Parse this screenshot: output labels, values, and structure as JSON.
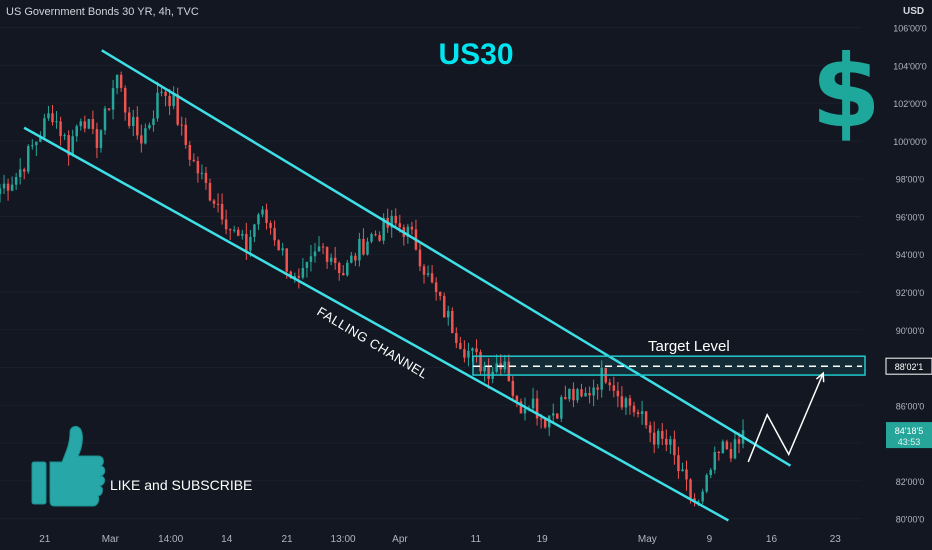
{
  "header": {
    "symbol_title": "US Government Bonds 30 YR, 4h, TVC",
    "currency": "USD"
  },
  "annotations": {
    "headline": "US30",
    "dollar_sign": "$",
    "channel_label": "FALLING CHANNEL",
    "target_label": "Target Level",
    "cta_text": "LIKE and SUBSCRIBE",
    "thumbs_icon": "thumbs-up-icon"
  },
  "colors": {
    "background": "#131722",
    "up_candle": "#26a69a",
    "down_candle": "#ef5350",
    "channel_line": "#3ee0e8",
    "headline": "#00e5f0",
    "dollar": "#1ea79b",
    "thumb": "#27a7a7",
    "target_box": "#22c7cf",
    "projection": "#ffffff"
  },
  "chart_data": {
    "type": "candlestick",
    "y_axis": {
      "position": "right",
      "min": 79.5,
      "max": 106.3,
      "ticks": [
        "80'00'0",
        "82'00'0",
        "84'00'0",
        "86'00'0",
        "88'00'0",
        "90'00'0",
        "92'00'0",
        "94'00'0",
        "96'00'0",
        "98'00'0",
        "100'00'0",
        "102'00'0",
        "104'00'0",
        "106'00'0"
      ],
      "tick_values": [
        80,
        82,
        84,
        86,
        88,
        90,
        92,
        94,
        96,
        98,
        100,
        102,
        104,
        106
      ]
    },
    "x_axis": {
      "ticks": [
        {
          "label": "21",
          "frac": 0.052
        },
        {
          "label": "Mar",
          "frac": 0.128
        },
        {
          "label": "14:00",
          "frac": 0.198
        },
        {
          "label": "14",
          "frac": 0.263
        },
        {
          "label": "21",
          "frac": 0.333
        },
        {
          "label": "13:00",
          "frac": 0.398
        },
        {
          "label": "Apr",
          "frac": 0.464
        },
        {
          "label": "11",
          "frac": 0.552
        },
        {
          "label": "19",
          "frac": 0.629
        },
        {
          "label": "May",
          "frac": 0.751
        },
        {
          "label": "9",
          "frac": 0.823
        },
        {
          "label": "16",
          "frac": 0.895
        },
        {
          "label": "23",
          "frac": 0.969
        }
      ]
    },
    "price_labels": [
      {
        "text": "88'02'1",
        "value": 88.07,
        "style": "target"
      },
      {
        "text": "84'18'5",
        "value": 84.58,
        "style": "current"
      },
      {
        "text": "43:53",
        "value": 84.58,
        "style": "countdown"
      }
    ],
    "target_level": 88.07,
    "target_zone": [
      87.6,
      88.6
    ],
    "channel_upper": {
      "start": {
        "frac": 0.118,
        "value": 104.8
      },
      "end": {
        "frac": 0.917,
        "value": 82.8
      }
    },
    "channel_lower": {
      "start": {
        "frac": 0.028,
        "value": 100.7
      },
      "end": {
        "frac": 0.845,
        "value": 79.9
      }
    },
    "projection_path": [
      {
        "frac": 0.868,
        "value": 83.0
      },
      {
        "frac": 0.89,
        "value": 85.5
      },
      {
        "frac": 0.915,
        "value": 83.4
      },
      {
        "frac": 0.955,
        "value": 87.7
      }
    ],
    "keypoints": [
      {
        "frac": 0.0,
        "value": 97.5
      },
      {
        "frac": 0.02,
        "value": 98.2
      },
      {
        "frac": 0.045,
        "value": 100.3
      },
      {
        "frac": 0.06,
        "value": 101.6
      },
      {
        "frac": 0.08,
        "value": 99.6
      },
      {
        "frac": 0.095,
        "value": 101.6
      },
      {
        "frac": 0.11,
        "value": 99.8
      },
      {
        "frac": 0.122,
        "value": 101.2
      },
      {
        "frac": 0.135,
        "value": 103.6
      },
      {
        "frac": 0.145,
        "value": 101.8
      },
      {
        "frac": 0.153,
        "value": 100.8
      },
      {
        "frac": 0.163,
        "value": 100.1
      },
      {
        "frac": 0.175,
        "value": 101.2
      },
      {
        "frac": 0.187,
        "value": 102.8
      },
      {
        "frac": 0.2,
        "value": 102.2
      },
      {
        "frac": 0.212,
        "value": 100.2
      },
      {
        "frac": 0.225,
        "value": 98.8
      },
      {
        "frac": 0.24,
        "value": 97.5
      },
      {
        "frac": 0.255,
        "value": 96.6
      },
      {
        "frac": 0.268,
        "value": 95.3
      },
      {
        "frac": 0.285,
        "value": 94.3
      },
      {
        "frac": 0.3,
        "value": 96.2
      },
      {
        "frac": 0.315,
        "value": 95.4
      },
      {
        "frac": 0.33,
        "value": 93.8
      },
      {
        "frac": 0.345,
        "value": 92.2
      },
      {
        "frac": 0.36,
        "value": 93.4
      },
      {
        "frac": 0.372,
        "value": 94.4
      },
      {
        "frac": 0.385,
        "value": 94.0
      },
      {
        "frac": 0.398,
        "value": 93.0
      },
      {
        "frac": 0.41,
        "value": 93.8
      },
      {
        "frac": 0.425,
        "value": 94.8
      },
      {
        "frac": 0.44,
        "value": 95.2
      },
      {
        "frac": 0.455,
        "value": 95.6
      },
      {
        "frac": 0.468,
        "value": 95.4
      },
      {
        "frac": 0.482,
        "value": 94.6
      },
      {
        "frac": 0.496,
        "value": 92.8
      },
      {
        "frac": 0.51,
        "value": 91.4
      },
      {
        "frac": 0.525,
        "value": 90.2
      },
      {
        "frac": 0.54,
        "value": 89.0
      },
      {
        "frac": 0.555,
        "value": 88.3
      },
      {
        "frac": 0.568,
        "value": 87.9
      },
      {
        "frac": 0.585,
        "value": 88.6
      },
      {
        "frac": 0.6,
        "value": 85.8
      },
      {
        "frac": 0.615,
        "value": 86.5
      },
      {
        "frac": 0.63,
        "value": 85.2
      },
      {
        "frac": 0.645,
        "value": 85.8
      },
      {
        "frac": 0.66,
        "value": 86.6
      },
      {
        "frac": 0.675,
        "value": 86.2
      },
      {
        "frac": 0.69,
        "value": 87.2
      },
      {
        "frac": 0.705,
        "value": 87.8
      },
      {
        "frac": 0.718,
        "value": 86.6
      },
      {
        "frac": 0.732,
        "value": 86.0
      },
      {
        "frac": 0.748,
        "value": 85.0
      },
      {
        "frac": 0.762,
        "value": 84.2
      },
      {
        "frac": 0.777,
        "value": 83.8
      },
      {
        "frac": 0.79,
        "value": 82.2
      },
      {
        "frac": 0.803,
        "value": 81.0
      },
      {
        "frac": 0.812,
        "value": 80.6
      },
      {
        "frac": 0.825,
        "value": 82.6
      },
      {
        "frac": 0.84,
        "value": 83.8
      },
      {
        "frac": 0.855,
        "value": 83.6
      },
      {
        "frac": 0.862,
        "value": 84.5
      }
    ]
  }
}
